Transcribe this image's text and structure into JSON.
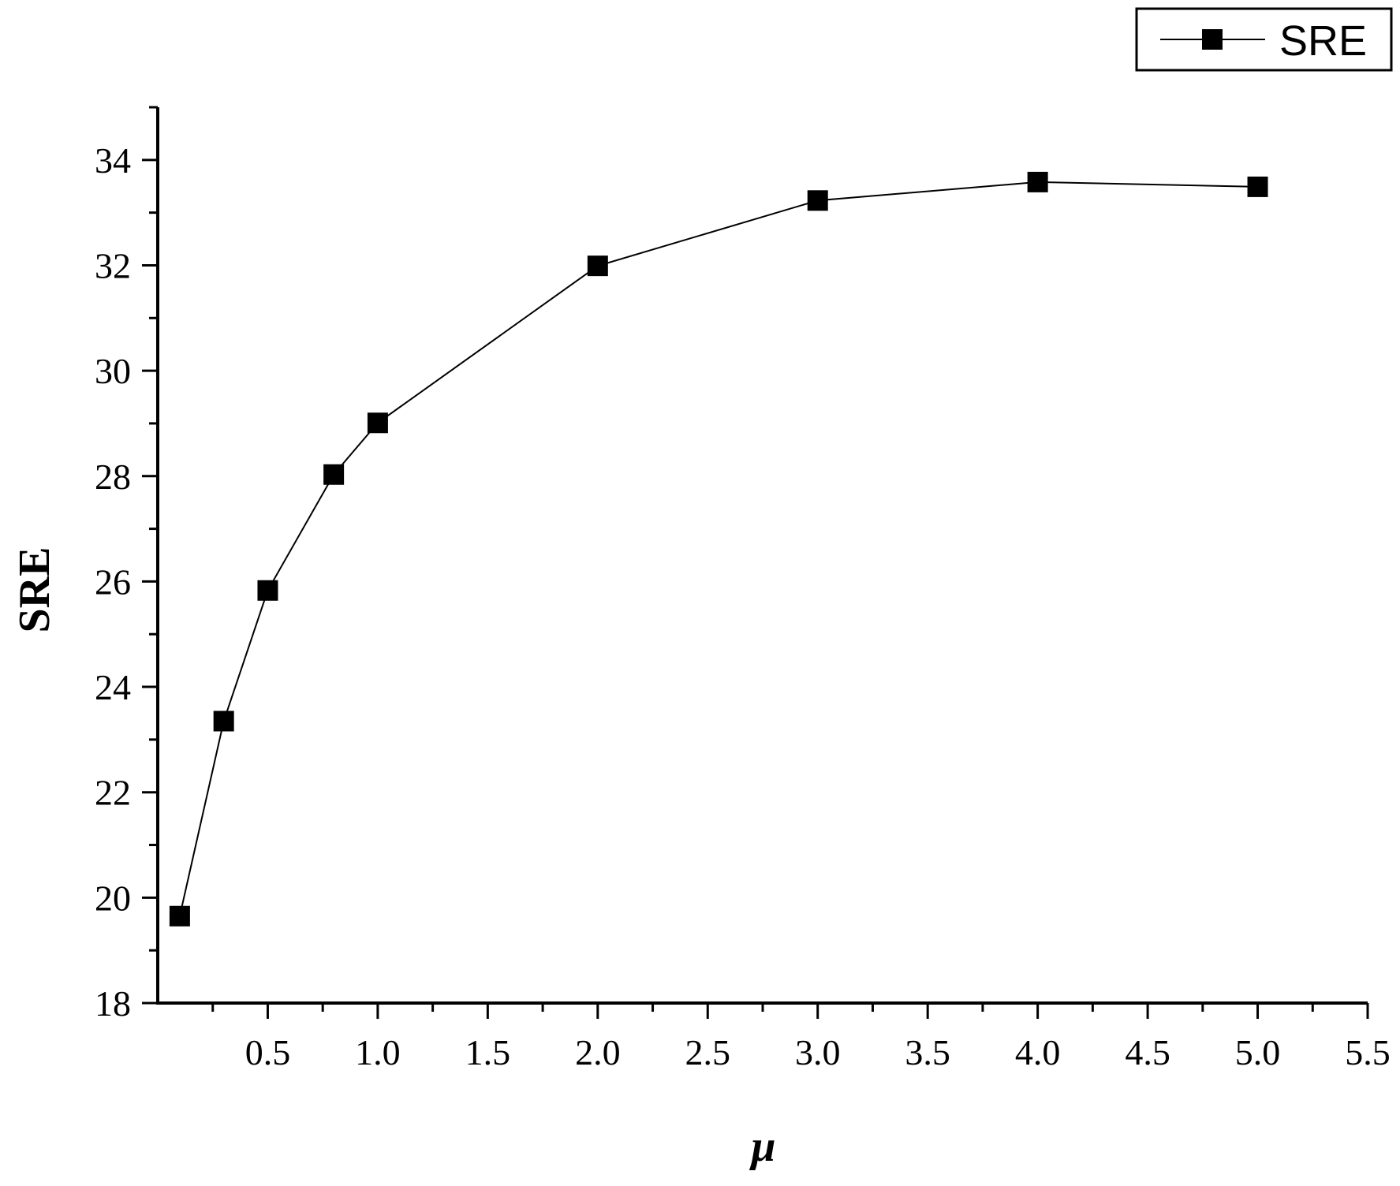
{
  "chart_data": {
    "type": "line",
    "xlabel": "μ",
    "ylabel": "SRE",
    "xlim": [
      0,
      5.5
    ],
    "ylim": [
      18,
      35
    ],
    "x_major_ticks": [
      0.5,
      1.0,
      1.5,
      2.0,
      2.5,
      3.0,
      3.5,
      4.0,
      4.5,
      5.0,
      5.5
    ],
    "x_tick_labels": [
      "0.5",
      "1.0",
      "1.5",
      "2.0",
      "2.5",
      "3.0",
      "3.5",
      "4.0",
      "4.5",
      "5.0",
      "5.5"
    ],
    "y_major_ticks": [
      18,
      20,
      22,
      24,
      26,
      28,
      30,
      32,
      34
    ],
    "y_tick_labels": [
      "18",
      "20",
      "22",
      "24",
      "26",
      "28",
      "30",
      "32",
      "34"
    ],
    "grid": false,
    "legend_position": "top-right",
    "series": [
      {
        "name": "SRE",
        "marker": "square",
        "color": "#000000",
        "x": [
          0.1,
          0.3,
          0.5,
          0.8,
          1.0,
          2.0,
          3.0,
          4.0,
          5.0
        ],
        "y": [
          19.65,
          23.35,
          25.83,
          28.03,
          29.01,
          31.99,
          33.23,
          33.58,
          33.49
        ]
      }
    ]
  }
}
